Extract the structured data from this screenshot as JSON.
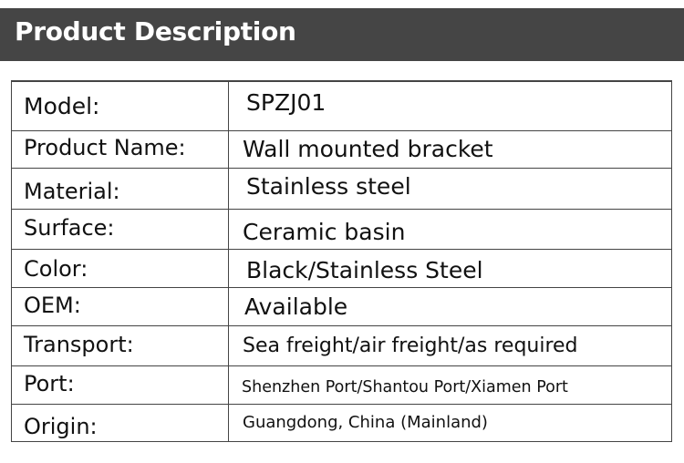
{
  "header": {
    "title": "Product Description"
  },
  "table": {
    "rows": [
      {
        "label": "Model:",
        "value": "SPZJ01"
      },
      {
        "label": "Product Name:",
        "value": "Wall mounted bracket"
      },
      {
        "label": "Material:",
        "value": "Stainless steel"
      },
      {
        "label": "Surface:",
        "value": "Ceramic basin"
      },
      {
        "label": "Color:",
        "value": "Black/Stainless Steel"
      },
      {
        "label": "OEM:",
        "value": "Available"
      },
      {
        "label": "Transport:",
        "value": "Sea freight/air freight/as required"
      },
      {
        "label": "Port:",
        "value": "Shenzhen Port/Shantou Port/Xiamen Port"
      },
      {
        "label": "Origin:",
        "value": "Guangdong, China (Mainland)"
      }
    ]
  }
}
